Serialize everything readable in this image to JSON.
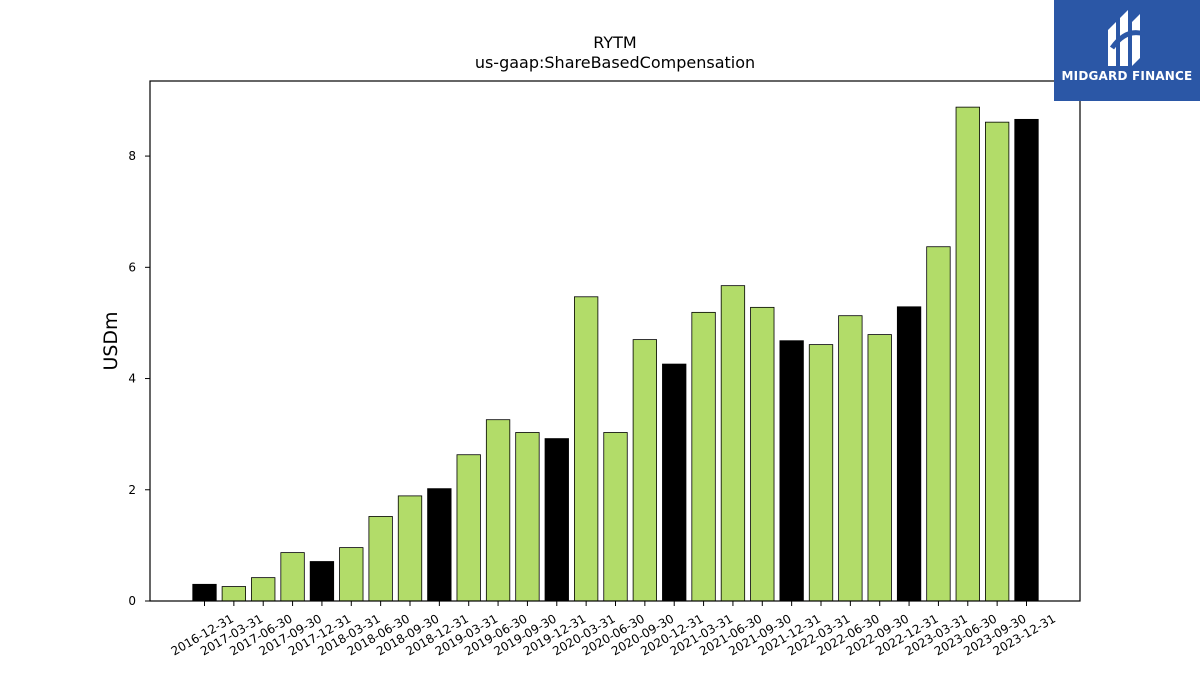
{
  "chart_data": {
    "type": "bar",
    "title": "RYTM",
    "subtitle": "us-gaap:ShareBasedCompensation",
    "ylabel": "USDm",
    "xlabel": "",
    "ylim": [
      0,
      9.35
    ],
    "yticks": [
      0,
      2,
      4,
      6,
      8
    ],
    "grid": false,
    "categories": [
      "2016-12-31",
      "2017-03-31",
      "2017-06-30",
      "2017-09-30",
      "2017-12-31",
      "2018-03-31",
      "2018-06-30",
      "2018-09-30",
      "2018-12-31",
      "2019-03-31",
      "2019-06-30",
      "2019-09-30",
      "2019-12-31",
      "2020-03-31",
      "2020-06-30",
      "2020-09-30",
      "2020-12-31",
      "2021-03-31",
      "2021-06-30",
      "2021-09-30",
      "2021-12-31",
      "2022-03-31",
      "2022-06-30",
      "2022-09-30",
      "2022-12-31",
      "2023-03-31",
      "2023-06-30",
      "2023-09-30",
      "2023-12-31"
    ],
    "values": [
      0.3,
      0.26,
      0.42,
      0.87,
      0.71,
      0.96,
      1.52,
      1.89,
      2.02,
      2.63,
      3.26,
      3.03,
      2.92,
      5.47,
      3.03,
      4.7,
      4.26,
      5.19,
      5.67,
      5.28,
      4.68,
      4.61,
      5.13,
      4.79,
      5.29,
      6.37,
      8.88,
      8.61,
      8.66
    ],
    "fiscal_year_end": [
      true,
      false,
      false,
      false,
      true,
      false,
      false,
      false,
      true,
      false,
      false,
      false,
      true,
      false,
      false,
      false,
      true,
      false,
      false,
      false,
      true,
      false,
      false,
      false,
      true,
      false,
      false,
      false,
      true
    ],
    "colors": {
      "quarter": "#b2dc69",
      "year_end": "#000000",
      "edge": "#000000"
    }
  },
  "logo": {
    "text": "MIDGARD FINANCE",
    "background": "#2b57a6"
  }
}
